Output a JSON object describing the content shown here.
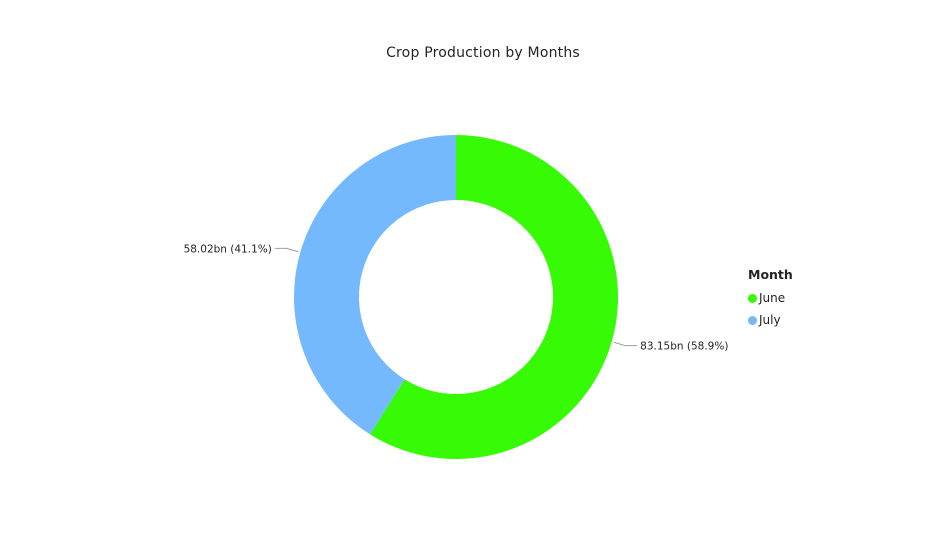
{
  "chart_data": {
    "type": "pie",
    "title": "Crop Production by Months",
    "legend_title": "Month",
    "legend_position": "right",
    "slices": [
      {
        "name": "June",
        "value": 83.15,
        "percent": 58.9,
        "label": "83.15bn (58.9%)",
        "color": "#37FA05"
      },
      {
        "name": "July",
        "value": 58.02,
        "percent": 41.1,
        "label": "58.02bn (41.1%)",
        "color": "#74B9FD"
      }
    ]
  }
}
